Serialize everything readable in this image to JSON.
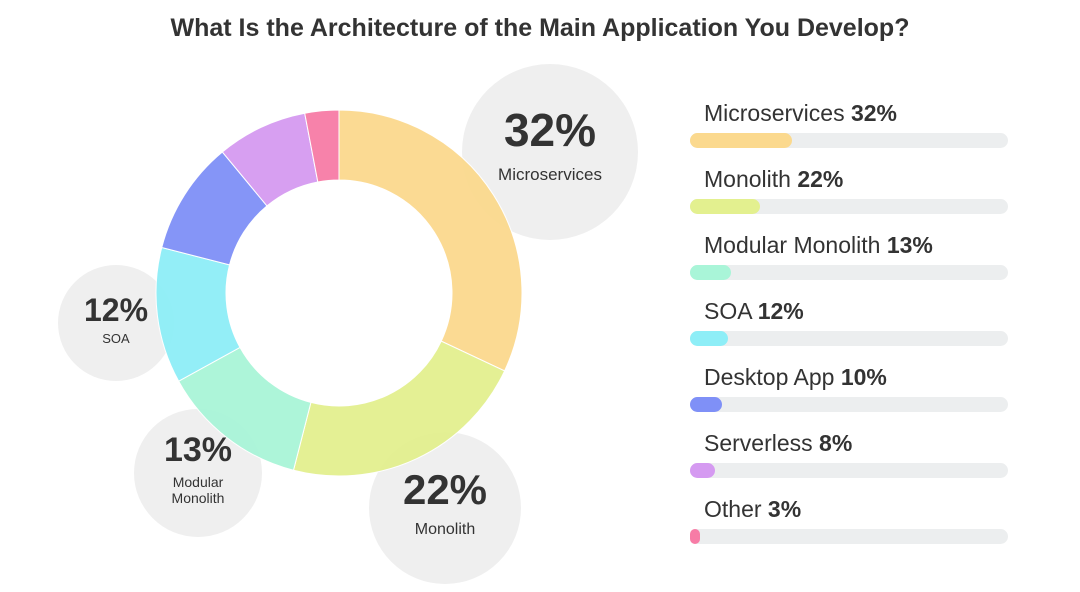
{
  "chart_data": {
    "type": "pie",
    "title": "What Is the Architecture of the Main Application You Develop?",
    "categories": [
      "Microservices",
      "Monolith",
      "Modular Monolith",
      "SOA",
      "Desktop App",
      "Serverless",
      "Other"
    ],
    "values": [
      32,
      22,
      13,
      12,
      10,
      8,
      3
    ],
    "value_labels": [
      "32%",
      "22%",
      "13%",
      "12%",
      "10%",
      "8%",
      "3%"
    ],
    "colors": [
      "#fbd98e",
      "#e3f08f",
      "#a9f5d8",
      "#8eeef7",
      "#7f90f7",
      "#d59af1",
      "#f77ca6"
    ],
    "donut_callouts": [
      {
        "index": 0,
        "value_label": "32%",
        "name_lines": [
          "Microservices"
        ]
      },
      {
        "index": 1,
        "value_label": "22%",
        "name_lines": [
          "Monolith"
        ]
      },
      {
        "index": 2,
        "value_label": "13%",
        "name_lines": [
          "Modular",
          "Monolith"
        ]
      },
      {
        "index": 3,
        "value_label": "12%",
        "name_lines": [
          "SOA"
        ]
      }
    ],
    "legend_placement": "right"
  }
}
